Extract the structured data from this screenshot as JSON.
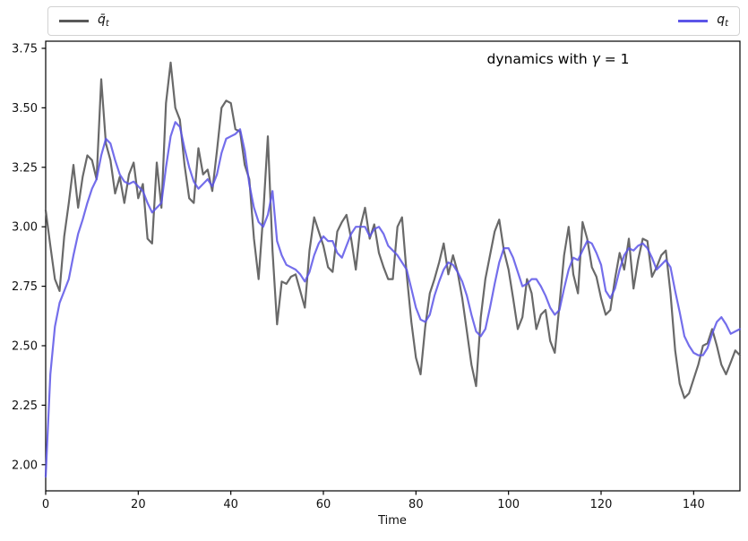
{
  "legend": {
    "entries": [
      {
        "label_base": "q̄",
        "label_sub": "t",
        "color": "#595959"
      },
      {
        "label_base": "q",
        "label_sub": "t",
        "color": "#5c55e8"
      }
    ]
  },
  "annotation": {
    "prefix": "dynamics with ",
    "symbol": "γ",
    "suffix": " = 1"
  },
  "chart_data": {
    "type": "line",
    "title": "dynamics with γ = 1",
    "xlabel": "Time",
    "ylabel": "",
    "xlim": [
      0,
      150
    ],
    "ylim": [
      1.89,
      3.78
    ],
    "xticks": [
      0,
      20,
      40,
      60,
      80,
      100,
      120,
      140
    ],
    "yticks": [
      2.0,
      2.25,
      2.5,
      2.75,
      3.0,
      3.25,
      3.5,
      3.75
    ],
    "grid": false,
    "legend_position": "single box spanning top, gray entry left, blue entry right",
    "x": [
      0,
      1,
      2,
      3,
      4,
      5,
      6,
      7,
      8,
      9,
      10,
      11,
      12,
      13,
      14,
      15,
      16,
      17,
      18,
      19,
      20,
      21,
      22,
      23,
      24,
      25,
      26,
      27,
      28,
      29,
      30,
      31,
      32,
      33,
      34,
      35,
      36,
      37,
      38,
      39,
      40,
      41,
      42,
      43,
      44,
      45,
      46,
      47,
      48,
      49,
      50,
      51,
      52,
      53,
      54,
      55,
      56,
      57,
      58,
      59,
      60,
      61,
      62,
      63,
      64,
      65,
      66,
      67,
      68,
      69,
      70,
      71,
      72,
      73,
      74,
      75,
      76,
      77,
      78,
      79,
      80,
      81,
      82,
      83,
      84,
      85,
      86,
      87,
      88,
      89,
      90,
      91,
      92,
      93,
      94,
      95,
      96,
      97,
      98,
      99,
      100,
      101,
      102,
      103,
      104,
      105,
      106,
      107,
      108,
      109,
      110,
      111,
      112,
      113,
      114,
      115,
      116,
      117,
      118,
      119,
      120,
      121,
      122,
      123,
      124,
      125,
      126,
      127,
      128,
      129,
      130,
      131,
      132,
      133,
      134,
      135,
      136,
      137,
      138,
      139,
      140,
      141,
      142,
      143,
      144,
      145,
      146,
      147,
      148,
      149,
      150
    ],
    "series": [
      {
        "name": "q̄_t",
        "color": "#595959",
        "values": [
          3.07,
          2.92,
          2.78,
          2.73,
          2.96,
          3.1,
          3.26,
          3.08,
          3.21,
          3.3,
          3.28,
          3.2,
          3.62,
          3.35,
          3.28,
          3.14,
          3.21,
          3.1,
          3.22,
          3.27,
          3.12,
          3.18,
          2.95,
          2.93,
          3.27,
          3.08,
          3.52,
          3.69,
          3.5,
          3.45,
          3.26,
          3.12,
          3.1,
          3.33,
          3.22,
          3.24,
          3.15,
          3.32,
          3.5,
          3.53,
          3.52,
          3.41,
          3.4,
          3.26,
          3.2,
          2.95,
          2.78,
          3.05,
          3.38,
          2.9,
          2.59,
          2.77,
          2.76,
          2.79,
          2.8,
          2.73,
          2.66,
          2.9,
          3.04,
          2.98,
          2.92,
          2.83,
          2.81,
          2.98,
          3.02,
          3.05,
          2.95,
          2.82,
          3.0,
          3.08,
          2.95,
          3.01,
          2.89,
          2.83,
          2.78,
          2.78,
          3.0,
          3.04,
          2.8,
          2.6,
          2.45,
          2.38,
          2.58,
          2.72,
          2.78,
          2.85,
          2.93,
          2.8,
          2.88,
          2.81,
          2.7,
          2.56,
          2.42,
          2.33,
          2.62,
          2.78,
          2.88,
          2.98,
          3.03,
          2.9,
          2.82,
          2.7,
          2.57,
          2.62,
          2.78,
          2.72,
          2.57,
          2.63,
          2.65,
          2.52,
          2.47,
          2.67,
          2.88,
          3.0,
          2.8,
          2.72,
          3.02,
          2.95,
          2.83,
          2.79,
          2.7,
          2.63,
          2.65,
          2.78,
          2.89,
          2.82,
          2.95,
          2.74,
          2.86,
          2.95,
          2.94,
          2.79,
          2.83,
          2.88,
          2.9,
          2.72,
          2.48,
          2.34,
          2.28,
          2.3,
          2.36,
          2.42,
          2.5,
          2.51,
          2.57,
          2.5,
          2.42,
          2.38,
          2.43,
          2.48,
          2.46
        ]
      },
      {
        "name": "q_t",
        "color": "#5c55e8",
        "values": [
          1.95,
          2.38,
          2.58,
          2.68,
          2.73,
          2.78,
          2.88,
          2.97,
          3.03,
          3.1,
          3.16,
          3.2,
          3.3,
          3.37,
          3.35,
          3.28,
          3.22,
          3.19,
          3.18,
          3.19,
          3.17,
          3.15,
          3.1,
          3.06,
          3.08,
          3.1,
          3.25,
          3.38,
          3.44,
          3.42,
          3.33,
          3.25,
          3.19,
          3.16,
          3.18,
          3.2,
          3.17,
          3.22,
          3.31,
          3.37,
          3.38,
          3.39,
          3.41,
          3.32,
          3.18,
          3.08,
          3.02,
          3.0,
          3.05,
          3.15,
          2.94,
          2.88,
          2.84,
          2.83,
          2.82,
          2.8,
          2.77,
          2.81,
          2.88,
          2.93,
          2.96,
          2.94,
          2.94,
          2.89,
          2.87,
          2.92,
          2.97,
          3.0,
          3.0,
          3.0,
          2.96,
          2.99,
          3.0,
          2.97,
          2.92,
          2.9,
          2.88,
          2.85,
          2.82,
          2.74,
          2.66,
          2.61,
          2.6,
          2.63,
          2.71,
          2.77,
          2.82,
          2.85,
          2.84,
          2.81,
          2.77,
          2.71,
          2.63,
          2.56,
          2.54,
          2.57,
          2.66,
          2.76,
          2.85,
          2.91,
          2.91,
          2.87,
          2.81,
          2.75,
          2.76,
          2.78,
          2.78,
          2.75,
          2.71,
          2.66,
          2.63,
          2.65,
          2.74,
          2.82,
          2.87,
          2.86,
          2.9,
          2.94,
          2.93,
          2.89,
          2.84,
          2.73,
          2.7,
          2.74,
          2.82,
          2.88,
          2.91,
          2.9,
          2.92,
          2.93,
          2.91,
          2.87,
          2.82,
          2.84,
          2.86,
          2.83,
          2.73,
          2.64,
          2.54,
          2.5,
          2.47,
          2.46,
          2.46,
          2.49,
          2.55,
          2.6,
          2.62,
          2.59,
          2.55,
          2.56,
          2.57
        ]
      }
    ]
  }
}
